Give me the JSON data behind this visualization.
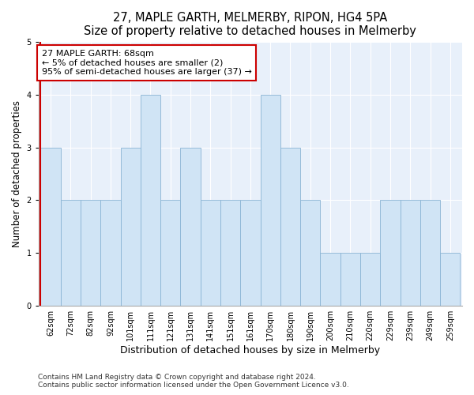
{
  "title": "27, MAPLE GARTH, MELMERBY, RIPON, HG4 5PA",
  "subtitle": "Size of property relative to detached houses in Melmerby",
  "xlabel": "Distribution of detached houses by size in Melmerby",
  "ylabel": "Number of detached properties",
  "bar_labels": [
    "62sqm",
    "72sqm",
    "82sqm",
    "92sqm",
    "101sqm",
    "111sqm",
    "121sqm",
    "131sqm",
    "141sqm",
    "151sqm",
    "161sqm",
    "170sqm",
    "180sqm",
    "190sqm",
    "200sqm",
    "210sqm",
    "220sqm",
    "229sqm",
    "239sqm",
    "249sqm",
    "259sqm"
  ],
  "bar_values": [
    3,
    2,
    2,
    2,
    3,
    4,
    2,
    3,
    2,
    2,
    2,
    4,
    3,
    2,
    1,
    1,
    1,
    2,
    2,
    2,
    1
  ],
  "bar_color": "#d0e4f5",
  "bar_edge_color": "#8ab4d4",
  "highlight_line_color": "#cc0000",
  "annotation_title": "27 MAPLE GARTH: 68sqm",
  "annotation_line1": "← 5% of detached houses are smaller (2)",
  "annotation_line2": "95% of semi-detached houses are larger (37) →",
  "annotation_box_color": "#ffffff",
  "annotation_box_edge_color": "#cc0000",
  "ylim": [
    0,
    5
  ],
  "yticks": [
    0,
    1,
    2,
    3,
    4,
    5
  ],
  "footer1": "Contains HM Land Registry data © Crown copyright and database right 2024.",
  "footer2": "Contains public sector information licensed under the Open Government Licence v3.0.",
  "plot_bg_color": "#e8f0fa",
  "fig_bg_color": "#ffffff",
  "title_fontsize": 10.5,
  "xlabel_fontsize": 9,
  "ylabel_fontsize": 8.5,
  "tick_fontsize": 7,
  "annotation_fontsize": 8,
  "footer_fontsize": 6.5,
  "grid_color": "#ffffff"
}
